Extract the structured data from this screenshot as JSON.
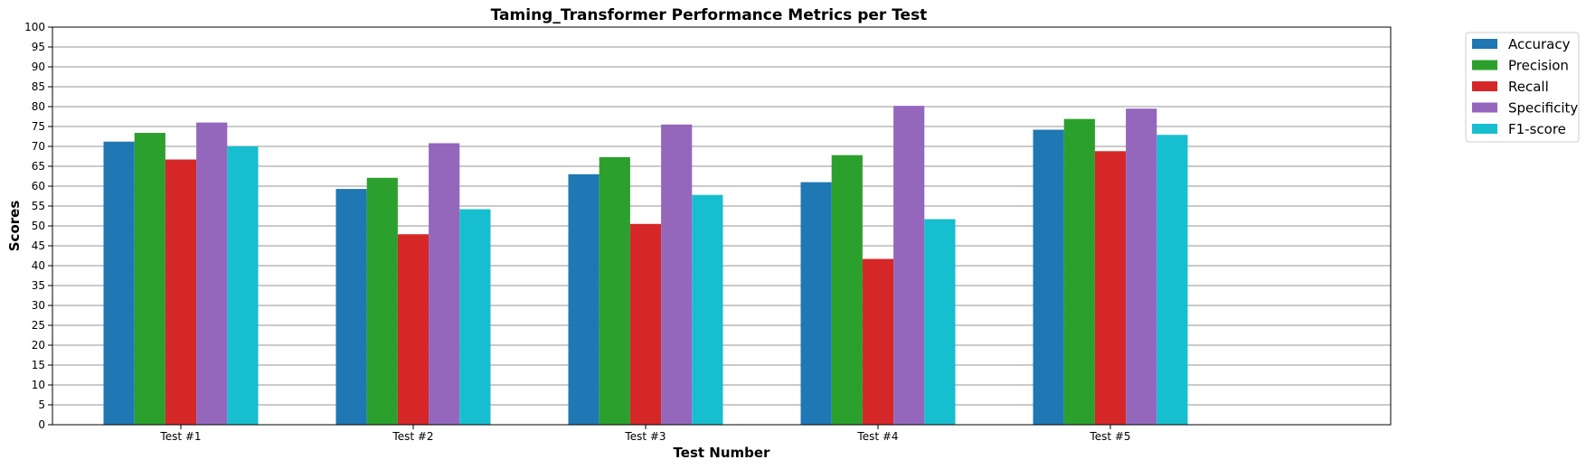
{
  "chart_data": {
    "type": "bar",
    "title": "Taming_Transformer Performance Metrics per Test",
    "xlabel": "Test Number",
    "ylabel": "Scores",
    "categories": [
      "Test #1",
      "Test #2",
      "Test #3",
      "Test #4",
      "Test #5"
    ],
    "ylim": [
      0,
      100
    ],
    "y_ticks": [
      0,
      5,
      10,
      15,
      20,
      25,
      30,
      35,
      40,
      45,
      50,
      55,
      60,
      65,
      70,
      75,
      80,
      85,
      90,
      95,
      100
    ],
    "grid": "horizontal",
    "legend_position": "outside-top-right",
    "series": [
      {
        "name": "Accuracy",
        "color": "#1f77b4",
        "values": [
          71.2,
          59.3,
          63.0,
          61.0,
          74.2
        ]
      },
      {
        "name": "Precision",
        "color": "#2ca02c",
        "values": [
          73.4,
          62.1,
          67.3,
          67.8,
          76.9
        ]
      },
      {
        "name": "Recall",
        "color": "#d62728",
        "values": [
          66.7,
          47.9,
          50.5,
          41.7,
          68.8
        ]
      },
      {
        "name": "Specificity",
        "color": "#9467bd",
        "values": [
          76.0,
          70.8,
          75.5,
          80.2,
          79.5
        ]
      },
      {
        "name": "F1-score",
        "color": "#17becf",
        "values": [
          70.0,
          54.2,
          57.8,
          51.7,
          72.9
        ]
      }
    ]
  }
}
